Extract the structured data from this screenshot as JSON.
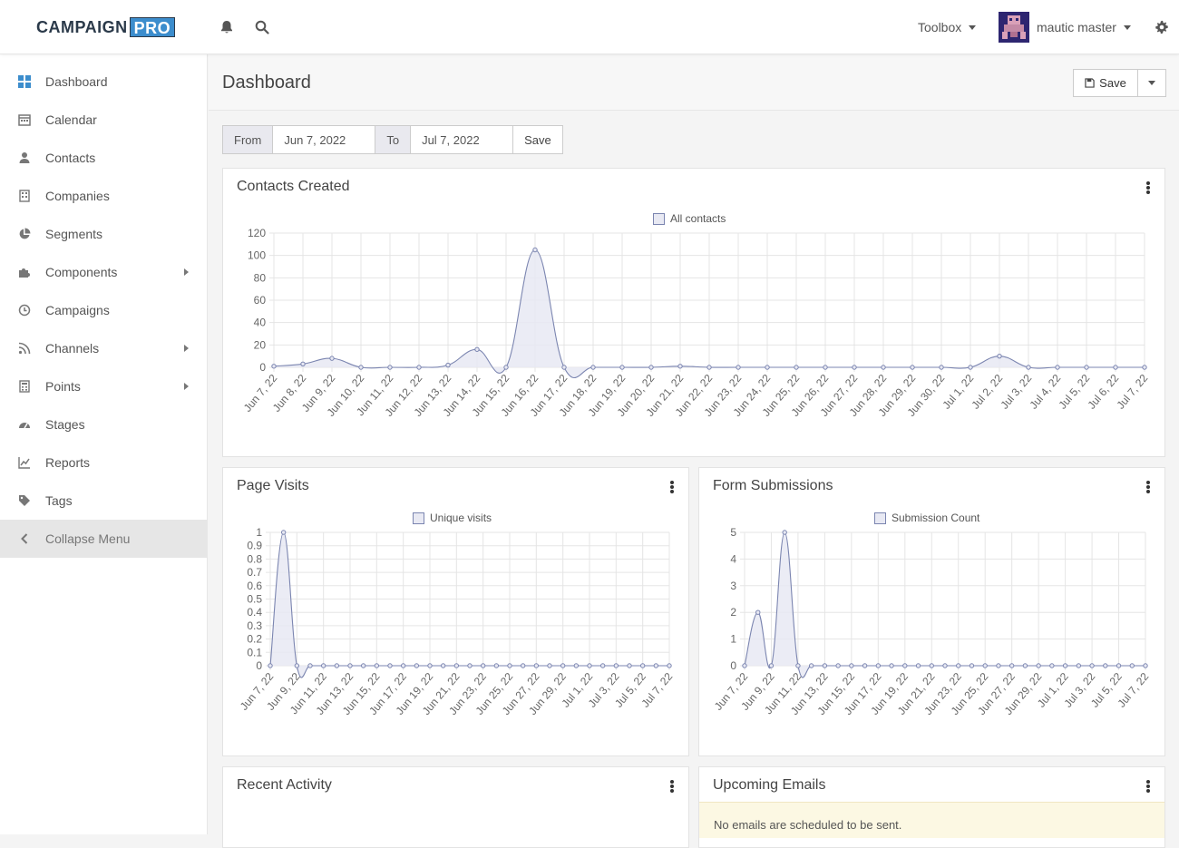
{
  "header": {
    "logo_main": "CAMPAIGN",
    "logo_pro": "PRO",
    "toolbox_label": "Toolbox",
    "username": "mautic master",
    "icons": [
      "bell-icon",
      "search-icon",
      "gear-icon"
    ]
  },
  "sidebar": {
    "items": [
      {
        "label": "Dashboard",
        "icon": "dashboard-icon"
      },
      {
        "label": "Calendar",
        "icon": "calendar-icon"
      },
      {
        "label": "Contacts",
        "icon": "user-icon"
      },
      {
        "label": "Companies",
        "icon": "building-icon"
      },
      {
        "label": "Segments",
        "icon": "pie-icon"
      },
      {
        "label": "Components",
        "icon": "puzzle-icon"
      },
      {
        "label": "Campaigns",
        "icon": "clock-icon"
      },
      {
        "label": "Channels",
        "icon": "rss-icon"
      },
      {
        "label": "Points",
        "icon": "calculator-icon"
      },
      {
        "label": "Stages",
        "icon": "tachometer-icon"
      },
      {
        "label": "Reports",
        "icon": "line-chart-icon"
      },
      {
        "label": "Tags",
        "icon": "tag-icon"
      },
      {
        "label": "Collapse Menu",
        "icon": "chevron-left-icon"
      }
    ]
  },
  "page": {
    "title": "Dashboard",
    "save_label": "Save"
  },
  "date_filter": {
    "from_label": "From",
    "from_value": "Jun 7, 2022",
    "to_label": "To",
    "to_value": "Jul 7, 2022",
    "save_label": "Save"
  },
  "widgets": {
    "contacts_created": {
      "title": "Contacts Created"
    },
    "page_visits": {
      "title": "Page Visits"
    },
    "form_submissions": {
      "title": "Form Submissions"
    },
    "recent_activity": {
      "title": "Recent Activity"
    },
    "upcoming_emails": {
      "title": "Upcoming Emails",
      "notice": "No emails are scheduled to be sent."
    }
  },
  "colors": {
    "line": "#7b85b0",
    "fill": "#e8e9f3",
    "accent": "#3c8dcd"
  },
  "chart_data": [
    {
      "type": "area",
      "title": "Contacts Created",
      "categories": [
        "Jun 7, 22",
        "Jun 8, 22",
        "Jun 9, 22",
        "Jun 10, 22",
        "Jun 11, 22",
        "Jun 12, 22",
        "Jun 13, 22",
        "Jun 14, 22",
        "Jun 15, 22",
        "Jun 16, 22",
        "Jun 17, 22",
        "Jun 18, 22",
        "Jun 19, 22",
        "Jun 20, 22",
        "Jun 21, 22",
        "Jun 22, 22",
        "Jun 23, 22",
        "Jun 24, 22",
        "Jun 25, 22",
        "Jun 26, 22",
        "Jun 27, 22",
        "Jun 28, 22",
        "Jun 29, 22",
        "Jun 30, 22",
        "Jul 1, 22",
        "Jul 2, 22",
        "Jul 3, 22",
        "Jul 4, 22",
        "Jul 5, 22",
        "Jul 6, 22",
        "Jul 7, 22"
      ],
      "series": [
        {
          "name": "All contacts",
          "values": [
            1,
            3,
            8,
            0,
            0,
            0,
            2,
            16,
            0,
            105,
            0,
            0,
            0,
            0,
            1,
            0,
            0,
            0,
            0,
            0,
            0,
            0,
            0,
            0,
            0,
            10,
            0,
            0,
            0,
            0,
            0
          ]
        }
      ],
      "yticks": [
        0,
        20,
        40,
        60,
        80,
        100,
        120
      ],
      "ylim": [
        0,
        120
      ],
      "grid": true,
      "legend": "top-center"
    },
    {
      "type": "area",
      "title": "Page Visits",
      "categories": [
        "Jun 7, 22",
        "Jun 8, 22",
        "Jun 9, 22",
        "Jun 10, 22",
        "Jun 11, 22",
        "Jun 12, 22",
        "Jun 13, 22",
        "Jun 14, 22",
        "Jun 15, 22",
        "Jun 16, 22",
        "Jun 17, 22",
        "Jun 18, 22",
        "Jun 19, 22",
        "Jun 20, 22",
        "Jun 21, 22",
        "Jun 22, 22",
        "Jun 23, 22",
        "Jun 24, 22",
        "Jun 25, 22",
        "Jun 26, 22",
        "Jun 27, 22",
        "Jun 28, 22",
        "Jun 29, 22",
        "Jun 30, 22",
        "Jul 1, 22",
        "Jul 2, 22",
        "Jul 3, 22",
        "Jul 4, 22",
        "Jul 5, 22",
        "Jul 6, 22",
        "Jul 7, 22"
      ],
      "tick_labels": [
        "Jun 7, 22",
        "Jun 9, 22",
        "Jun 11, 22",
        "Jun 13, 22",
        "Jun 15, 22",
        "Jun 17, 22",
        "Jun 19, 22",
        "Jun 21, 22",
        "Jun 23, 22",
        "Jun 25, 22",
        "Jun 27, 22",
        "Jun 29, 22",
        "Jul 1, 22",
        "Jul 3, 22",
        "Jul 5, 22",
        "Jul 7, 22"
      ],
      "series": [
        {
          "name": "Unique visits",
          "values": [
            0,
            1,
            0,
            0,
            0,
            0,
            0,
            0,
            0,
            0,
            0,
            0,
            0,
            0,
            0,
            0,
            0,
            0,
            0,
            0,
            0,
            0,
            0,
            0,
            0,
            0,
            0,
            0,
            0,
            0,
            0
          ]
        }
      ],
      "yticks": [
        0,
        0.1,
        0.2,
        0.3,
        0.4,
        0.5,
        0.6,
        0.7,
        0.8,
        0.9,
        1.0
      ],
      "ylim": [
        0,
        1
      ],
      "grid": true,
      "legend": "top-center"
    },
    {
      "type": "area",
      "title": "Form Submissions",
      "categories": [
        "Jun 7, 22",
        "Jun 8, 22",
        "Jun 9, 22",
        "Jun 10, 22",
        "Jun 11, 22",
        "Jun 12, 22",
        "Jun 13, 22",
        "Jun 14, 22",
        "Jun 15, 22",
        "Jun 16, 22",
        "Jun 17, 22",
        "Jun 18, 22",
        "Jun 19, 22",
        "Jun 20, 22",
        "Jun 21, 22",
        "Jun 22, 22",
        "Jun 23, 22",
        "Jun 24, 22",
        "Jun 25, 22",
        "Jun 26, 22",
        "Jun 27, 22",
        "Jun 28, 22",
        "Jun 29, 22",
        "Jun 30, 22",
        "Jul 1, 22",
        "Jul 2, 22",
        "Jul 3, 22",
        "Jul 4, 22",
        "Jul 5, 22",
        "Jul 6, 22",
        "Jul 7, 22"
      ],
      "tick_labels": [
        "Jun 7, 22",
        "Jun 9, 22",
        "Jun 11, 22",
        "Jun 13, 22",
        "Jun 15, 22",
        "Jun 17, 22",
        "Jun 19, 22",
        "Jun 21, 22",
        "Jun 23, 22",
        "Jun 25, 22",
        "Jun 27, 22",
        "Jun 29, 22",
        "Jul 1, 22",
        "Jul 3, 22",
        "Jul 5, 22",
        "Jul 7, 22"
      ],
      "series": [
        {
          "name": "Submission Count",
          "values": [
            0,
            2,
            0,
            5,
            0,
            0,
            0,
            0,
            0,
            0,
            0,
            0,
            0,
            0,
            0,
            0,
            0,
            0,
            0,
            0,
            0,
            0,
            0,
            0,
            0,
            0,
            0,
            0,
            0,
            0,
            0
          ]
        }
      ],
      "yticks": [
        0,
        1,
        2,
        3,
        4,
        5
      ],
      "ylim": [
        0,
        5
      ],
      "grid": true,
      "legend": "top-center"
    }
  ]
}
